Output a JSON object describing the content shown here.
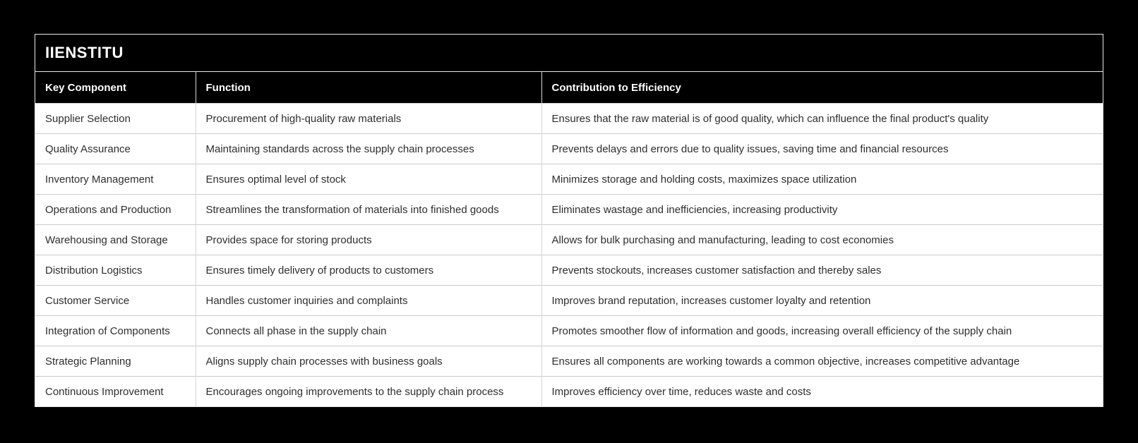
{
  "page": {
    "background_color": "#000000"
  },
  "card": {
    "title": "IIENSTITU",
    "colors": {
      "band_background": "#000000",
      "band_text": "#ffffff",
      "row_background": "#ffffff",
      "row_text": "#2e2e2e",
      "grid_line": "#cccccc",
      "card_border": "#e8e8e8"
    }
  },
  "table": {
    "columns": [
      {
        "label": "Key Component"
      },
      {
        "label": "Function"
      },
      {
        "label": "Contribution to Efficiency"
      }
    ],
    "rows": [
      {
        "component": "Supplier Selection",
        "function": "Procurement of high-quality raw materials",
        "contribution": "Ensures that the raw material is of good quality, which can influence the final product's quality"
      },
      {
        "component": "Quality Assurance",
        "function": "Maintaining standards across the supply chain processes",
        "contribution": "Prevents delays and errors due to quality issues, saving time and financial resources"
      },
      {
        "component": "Inventory Management",
        "function": "Ensures optimal level of stock",
        "contribution": "Minimizes storage and holding costs, maximizes space utilization"
      },
      {
        "component": "Operations and Production",
        "function": "Streamlines the transformation of materials into finished goods",
        "contribution": "Eliminates wastage and inefficiencies, increasing productivity"
      },
      {
        "component": "Warehousing and Storage",
        "function": "Provides space for storing products",
        "contribution": "Allows for bulk purchasing and manufacturing, leading to cost economies"
      },
      {
        "component": "Distribution Logistics",
        "function": "Ensures timely delivery of products to customers",
        "contribution": "Prevents stockouts, increases customer satisfaction and thereby sales"
      },
      {
        "component": "Customer Service",
        "function": "Handles customer inquiries and complaints",
        "contribution": "Improves brand reputation, increases customer loyalty and retention"
      },
      {
        "component": "Integration of Components",
        "function": "Connects all phase in the supply chain",
        "contribution": "Promotes smoother flow of information and goods, increasing overall efficiency of the supply chain"
      },
      {
        "component": "Strategic Planning",
        "function": "Aligns supply chain processes with business goals",
        "contribution": "Ensures all components are working towards a common objective, increases competitive advantage"
      },
      {
        "component": "Continuous Improvement",
        "function": "Encourages ongoing improvements to the supply chain process",
        "contribution": "Improves efficiency over time, reduces waste and costs"
      }
    ]
  }
}
